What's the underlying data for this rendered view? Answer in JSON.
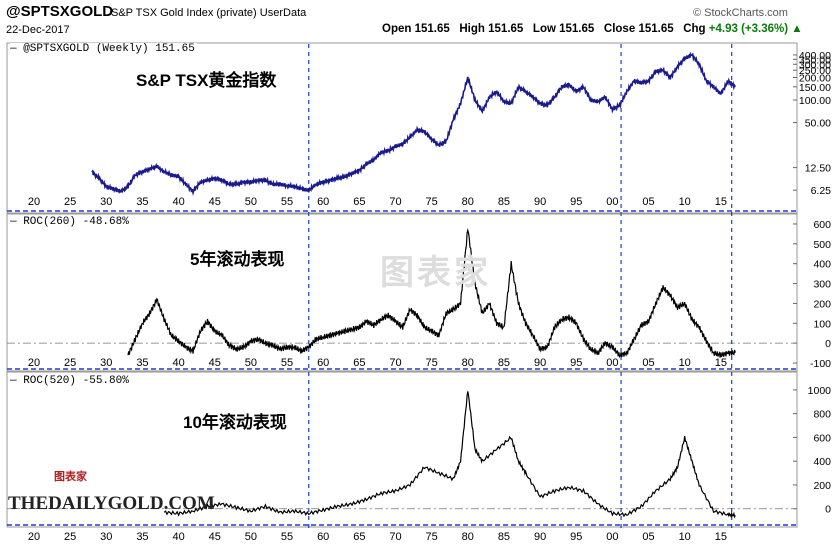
{
  "header": {
    "symbol": "@SPTSXGOLD",
    "description": "S&P TSX Gold Index (private)",
    "user": "UserData",
    "source": "© StockCharts.com",
    "date": "22-Dec-2017",
    "open_label": "Open",
    "open": "151.65",
    "high_label": "High",
    "high": "151.65",
    "low_label": "Low",
    "low": "151.65",
    "close_label": "Close",
    "close": "151.65",
    "chg_label": "Chg",
    "chg": "+4.93 (+3.36%)",
    "arrow": "▲"
  },
  "panels": {
    "price": {
      "label": "@SPTSXGOLD (Weekly) 151.65",
      "title": "S&P TSX黄金指数"
    },
    "roc260": {
      "label": "ROC(260) -48.68%",
      "title": "5年滚动表现"
    },
    "roc520": {
      "label": "ROC(520) -55.80%",
      "title": "10年滚动表现"
    }
  },
  "watermark": {
    "text": "图表家",
    "small": "图表家"
  },
  "logo": "THEDAILYGOLD.COM",
  "chart_data": [
    {
      "type": "line",
      "title": "@SPTSXGOLD (Weekly) 151.65",
      "x_ticks": [
        "20",
        "25",
        "30",
        "35",
        "40",
        "45",
        "50",
        "55",
        "60",
        "65",
        "70",
        "75",
        "80",
        "85",
        "90",
        "95",
        "00",
        "05",
        "10",
        "15"
      ],
      "y_scale": "log",
      "y_ticks": [
        "6.25",
        "12.50",
        "50.00",
        "100.00",
        "150.00",
        "200.00",
        "250.00",
        "300.00",
        "350.00",
        "400.00"
      ],
      "series": [
        {
          "x": [
            1928,
            1929,
            1930,
            1931,
            1932,
            1933,
            1934,
            1935,
            1936,
            1937,
            1938,
            1939,
            1940,
            1941,
            1942,
            1943,
            1944,
            1945,
            1946,
            1947,
            1948,
            1949,
            1950,
            1951,
            1952,
            1953,
            1954,
            1955,
            1956,
            1957,
            1958,
            1959,
            1960,
            1961,
            1962,
            1963,
            1964,
            1965,
            1966,
            1967,
            1968,
            1969,
            1970,
            1971,
            1972,
            1973,
            1974,
            1975,
            1976,
            1977,
            1978,
            1979,
            1980,
            1981,
            1982,
            1983,
            1984,
            1985,
            1986,
            1987,
            1988,
            1989,
            1990,
            1991,
            1992,
            1993,
            1994,
            1995,
            1996,
            1997,
            1998,
            1999,
            2000,
            2001,
            2002,
            2003,
            2004,
            2005,
            2006,
            2007,
            2008,
            2009,
            2010,
            2011,
            2012,
            2013,
            2014,
            2015,
            2016,
            2017
          ],
          "values": [
            11,
            9,
            7,
            6.5,
            6,
            7,
            10,
            11,
            12,
            13,
            11,
            10,
            9.5,
            7.5,
            6,
            8,
            8.5,
            9,
            8.5,
            7.5,
            7.5,
            8,
            8,
            8.5,
            8.5,
            7.5,
            7.5,
            7.2,
            7,
            6.5,
            6.2,
            7.5,
            8,
            8.5,
            9,
            9.5,
            10.5,
            11.5,
            14,
            16,
            20,
            21,
            24,
            26,
            32,
            40,
            38,
            30,
            25,
            28,
            55,
            90,
            200,
            100,
            70,
            110,
            130,
            95,
            90,
            150,
            130,
            110,
            90,
            85,
            110,
            150,
            160,
            130,
            150,
            100,
            95,
            110,
            75,
            85,
            130,
            180,
            170,
            180,
            240,
            250,
            200,
            280,
            360,
            400,
            300,
            180,
            150,
            120,
            180,
            150
          ]
        }
      ]
    },
    {
      "type": "line",
      "title": "ROC(260) -48.68%",
      "x_ticks": [
        "20",
        "25",
        "30",
        "35",
        "40",
        "45",
        "50",
        "55",
        "60",
        "65",
        "70",
        "75",
        "80",
        "85",
        "90",
        "95",
        "00",
        "05",
        "10",
        "15"
      ],
      "y_ticks": [
        "-100",
        "0",
        "100",
        "200",
        "300",
        "400",
        "500",
        "600"
      ],
      "series": [
        {
          "x": [
            1933,
            1934,
            1935,
            1936,
            1937,
            1938,
            1939,
            1940,
            1941,
            1942,
            1943,
            1944,
            1945,
            1946,
            1947,
            1948,
            1949,
            1950,
            1951,
            1952,
            1953,
            1954,
            1955,
            1956,
            1957,
            1958,
            1959,
            1960,
            1961,
            1962,
            1963,
            1964,
            1965,
            1966,
            1967,
            1968,
            1969,
            1970,
            1971,
            1972,
            1973,
            1974,
            1975,
            1976,
            1977,
            1978,
            1979,
            1980,
            1981,
            1982,
            1983,
            1984,
            1985,
            1986,
            1987,
            1988,
            1989,
            1990,
            1991,
            1992,
            1993,
            1994,
            1995,
            1996,
            1997,
            1998,
            1999,
            2000,
            2001,
            2002,
            2003,
            2004,
            2005,
            2006,
            2007,
            2008,
            2009,
            2010,
            2011,
            2012,
            2013,
            2014,
            2015,
            2016,
            2017
          ],
          "values": [
            -60,
            20,
            100,
            150,
            220,
            120,
            40,
            10,
            -20,
            -40,
            60,
            110,
            60,
            40,
            -10,
            -30,
            -20,
            10,
            20,
            0,
            -10,
            -30,
            -20,
            -20,
            -40,
            -20,
            20,
            30,
            40,
            50,
            60,
            70,
            80,
            110,
            90,
            120,
            140,
            110,
            80,
            170,
            140,
            80,
            60,
            40,
            150,
            170,
            200,
            580,
            300,
            150,
            200,
            100,
            80,
            400,
            200,
            100,
            40,
            -30,
            -20,
            80,
            120,
            130,
            100,
            20,
            -30,
            -50,
            0,
            -20,
            -60,
            -50,
            20,
            90,
            110,
            200,
            280,
            240,
            180,
            200,
            120,
            80,
            10,
            -50,
            -60,
            -50,
            -48
          ]
        }
      ]
    },
    {
      "type": "line",
      "title": "ROC(520) -55.80%",
      "x_ticks": [
        "20",
        "25",
        "30",
        "35",
        "40",
        "45",
        "50",
        "55",
        "60",
        "65",
        "70",
        "75",
        "80",
        "85",
        "90",
        "95",
        "00",
        "05",
        "10",
        "15"
      ],
      "y_ticks": [
        "0",
        "200",
        "400",
        "600",
        "800",
        "1000"
      ],
      "series": [
        {
          "x": [
            1938,
            1940,
            1942,
            1944,
            1946,
            1948,
            1950,
            1952,
            1954,
            1956,
            1958,
            1960,
            1962,
            1964,
            1966,
            1968,
            1970,
            1972,
            1974,
            1976,
            1978,
            1979,
            1980,
            1981,
            1982,
            1984,
            1986,
            1987,
            1988,
            1990,
            1992,
            1994,
            1996,
            1998,
            2000,
            2002,
            2004,
            2006,
            2008,
            2009,
            2010,
            2011,
            2012,
            2014,
            2016,
            2017
          ],
          "values": [
            -30,
            -40,
            -20,
            20,
            40,
            10,
            -20,
            20,
            -30,
            -20,
            -40,
            -10,
            20,
            40,
            80,
            130,
            150,
            200,
            350,
            300,
            250,
            400,
            1000,
            500,
            400,
            500,
            600,
            400,
            300,
            100,
            150,
            180,
            150,
            40,
            -40,
            -50,
            20,
            150,
            250,
            350,
            600,
            400,
            200,
            -20,
            -50,
            -56
          ]
        }
      ]
    }
  ]
}
